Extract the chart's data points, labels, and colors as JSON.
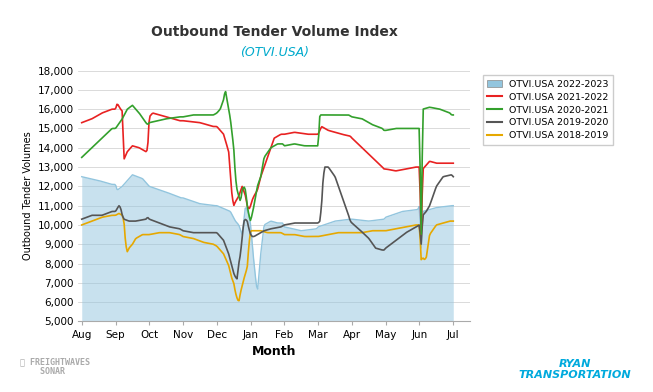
{
  "title": "Outbound Tender Volume Index",
  "subtitle": "(OTVI.USA)",
  "xlabel": "Month",
  "ylabel": "Outbound Tender Volumes",
  "ylim": [
    5000,
    18000
  ],
  "yticks": [
    5000,
    6000,
    7000,
    8000,
    9000,
    10000,
    11000,
    12000,
    13000,
    14000,
    15000,
    16000,
    17000,
    18000
  ],
  "months": [
    "Aug",
    "Sep",
    "Oct",
    "Nov",
    "Dec",
    "Jan",
    "Feb",
    "Mar",
    "Apr",
    "May",
    "Jun",
    "Jul"
  ],
  "colors": {
    "2022_2023": "#92c5de",
    "2021_2022": "#e82222",
    "2020_2021": "#33a02c",
    "2019_2020": "#555555",
    "2018_2019": "#e6a800"
  },
  "legend_labels": [
    "OTVI.USA 2022-2023",
    "OTVI.USA 2021-2022",
    "OTVI.USA 2020-2021",
    "OTVI.USA 2019-2020",
    "OTVI.USA 2018-2019"
  ],
  "background_color": "#ffffff",
  "grid_color": "#cccccc",
  "title_color": "#333333",
  "subtitle_color": "#00aacc",
  "fill_alpha": 0.5
}
